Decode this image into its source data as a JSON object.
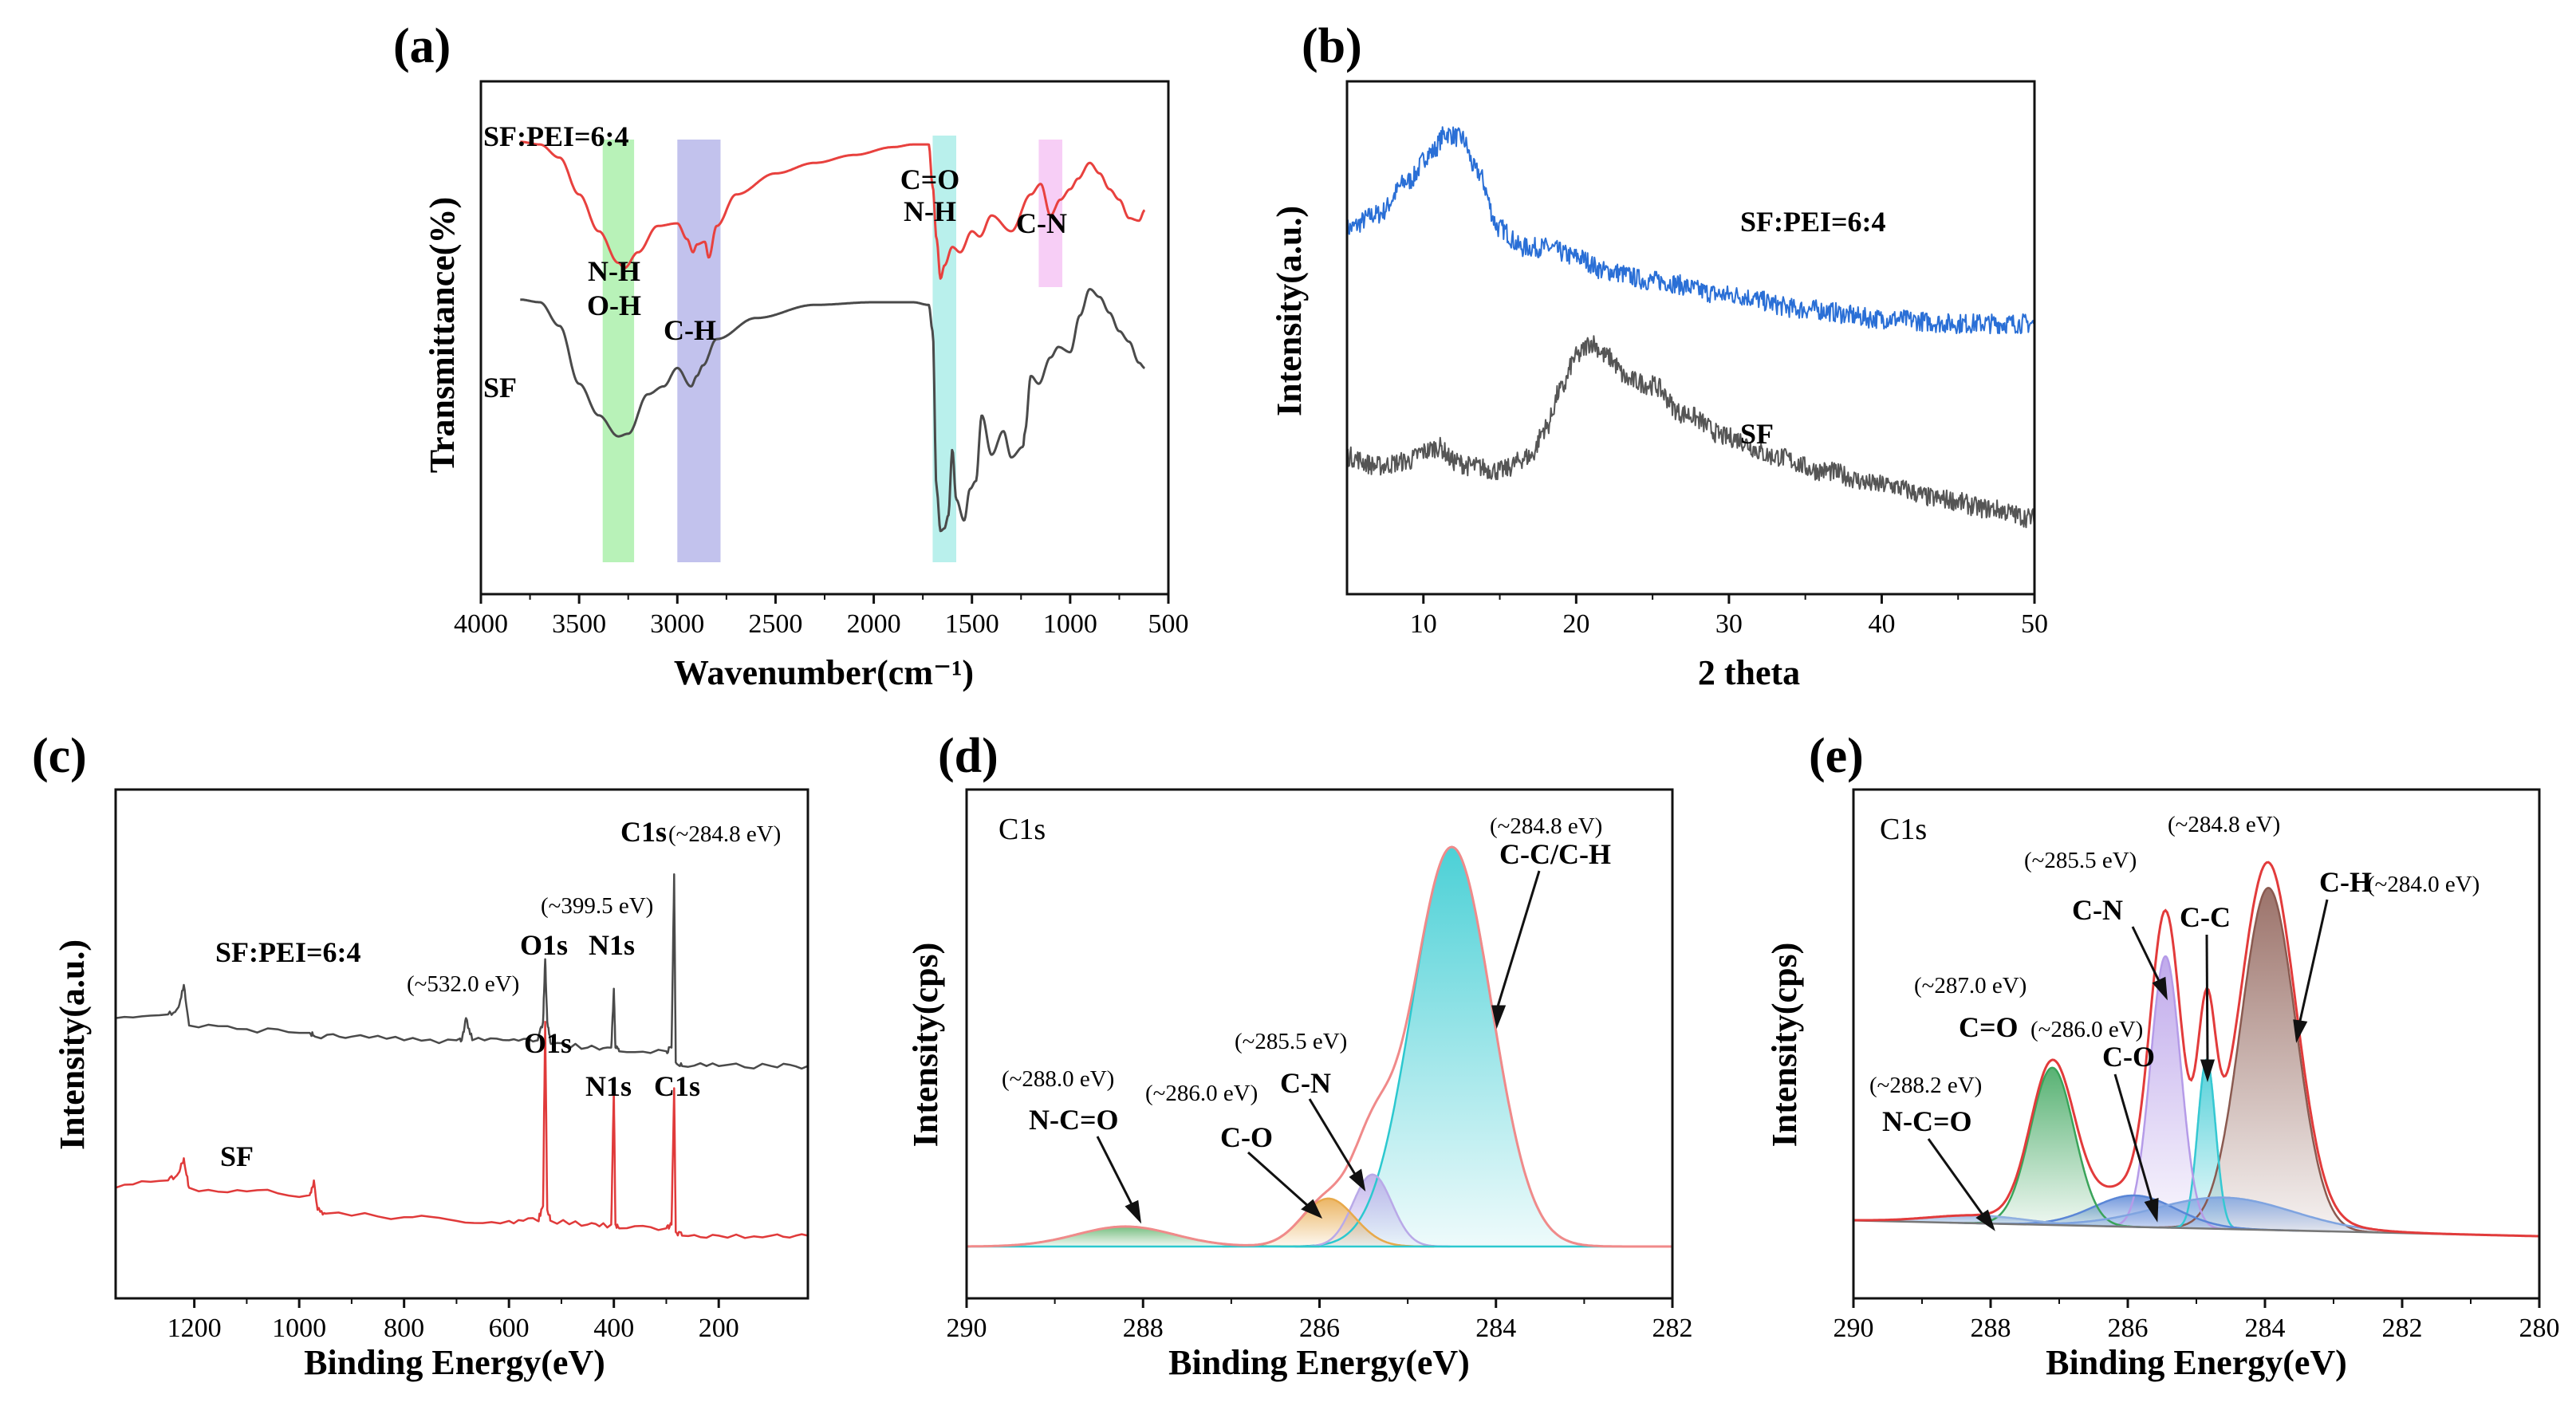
{
  "chart_data": [
    {
      "id": "a",
      "type": "line",
      "panel_label": "(a)",
      "xlabel": "Wavenumber(cm⁻¹)",
      "ylabel": "Transmittance(%)",
      "xlim": [
        4000,
        500
      ],
      "xticks": [
        4000,
        3500,
        3000,
        2500,
        2000,
        1500,
        1000,
        500
      ],
      "tick_labels": [
        "4000",
        "3500",
        "3000",
        "2500",
        "2000",
        "1500",
        "1000",
        "500"
      ],
      "bands": [
        {
          "label": "N-H\nO-H",
          "lines": [
            "N-H",
            "O-H"
          ],
          "x0": 3380,
          "x1": 3220,
          "color": "#7de87d"
        },
        {
          "label": "C-H",
          "lines": [
            "C-H"
          ],
          "x0": 3000,
          "x1": 2780,
          "color": "#8f8fdf"
        },
        {
          "label": "C=O\nN-H",
          "lines": [
            "C=O",
            "N-H"
          ],
          "x0": 1700,
          "x1": 1580,
          "color": "#7fe3dd"
        },
        {
          "label": "C-N",
          "lines": [
            "C-N"
          ],
          "x0": 1160,
          "x1": 1040,
          "color": "#f0a6ef"
        }
      ],
      "series": [
        {
          "name": "SF:PEI=6:4",
          "color": "#e8413e",
          "x": [
            3800,
            3700,
            3600,
            3500,
            3400,
            3300,
            3270,
            3200,
            3100,
            3000,
            2950,
            2920,
            2900,
            2860,
            2840,
            2800,
            2700,
            2500,
            2300,
            2100,
            1900,
            1800,
            1720,
            1700,
            1680,
            1660,
            1640,
            1600,
            1560,
            1500,
            1460,
            1400,
            1300,
            1200,
            1150,
            1100,
            1050,
            1000,
            960,
            900,
            850,
            800,
            750,
            700,
            650,
            620
          ],
          "y": [
            92,
            91,
            86,
            72,
            58,
            46,
            44,
            50,
            60,
            61,
            55,
            50,
            53,
            54,
            48,
            60,
            72,
            80,
            84,
            87,
            90,
            91,
            91,
            75,
            55,
            40,
            45,
            52,
            50,
            58,
            56,
            64,
            58,
            72,
            76,
            64,
            70,
            74,
            78,
            84,
            80,
            74,
            70,
            63,
            62,
            66
          ]
        },
        {
          "name": "SF",
          "color": "#4a4a4a",
          "x": [
            3800,
            3700,
            3600,
            3500,
            3400,
            3300,
            3250,
            3150,
            3070,
            3000,
            2930,
            2900,
            2870,
            2800,
            2600,
            2300,
            2000,
            1800,
            1720,
            1700,
            1680,
            1660,
            1640,
            1620,
            1600,
            1580,
            1540,
            1510,
            1480,
            1450,
            1400,
            1340,
            1300,
            1240,
            1230,
            1200,
            1160,
            1100,
            1060,
            1000,
            950,
            900,
            850,
            800,
            750,
            700,
            650,
            620
          ],
          "y": [
            32,
            31,
            22,
            0,
            -12,
            -20,
            -19,
            -4,
            -1,
            6,
            -1,
            3,
            7,
            17,
            25,
            30,
            31,
            31,
            30,
            20,
            -40,
            -56,
            -55,
            -50,
            -25,
            -44,
            -52,
            -40,
            -37,
            -12,
            -27,
            -18,
            -28,
            -24,
            -18,
            3,
            0,
            10,
            14,
            12,
            26,
            36,
            33,
            27,
            20,
            16,
            8,
            6
          ]
        }
      ],
      "series_labels": [
        "SF:PEI=6:4",
        "SF"
      ]
    },
    {
      "id": "b",
      "type": "line",
      "panel_label": "(b)",
      "xlabel": "2 theta",
      "ylabel": "Intensity(a.u.)",
      "xlim": [
        5,
        50
      ],
      "xticks": [
        10,
        20,
        30,
        40,
        50
      ],
      "tick_labels": [
        "10",
        "20",
        "30",
        "40",
        "50"
      ],
      "series": [
        {
          "name": "SF:PEI=6:4",
          "color": "#2a6fd6",
          "x": [
            5,
            7,
            9,
            10.5,
            11.5,
            12.5,
            13.5,
            15,
            16.5,
            18,
            20,
            22,
            25,
            30,
            35,
            40,
            45,
            50
          ],
          "y": [
            77,
            80,
            87,
            93,
            97,
            96,
            89,
            77,
            73,
            73,
            71,
            68,
            66,
            63,
            60,
            58,
            57,
            57
          ]
        },
        {
          "name": "SF",
          "color": "#555555",
          "x": [
            5,
            7,
            9,
            10,
            11,
            12,
            13,
            15,
            17,
            18,
            19,
            20,
            21,
            22,
            23.5,
            25,
            27,
            30,
            33,
            36,
            40,
            44,
            47,
            50
          ],
          "y": [
            29,
            27,
            28,
            30,
            31,
            28,
            27,
            26,
            29,
            35,
            43,
            50,
            53,
            50,
            45,
            44,
            38,
            33,
            29,
            26,
            23,
            20,
            18,
            16
          ]
        }
      ],
      "series_labels": [
        "SF:PEI=6:4",
        "SF"
      ]
    },
    {
      "id": "c",
      "type": "line",
      "panel_label": "(c)",
      "xlabel": "Binding Energy(eV)",
      "ylabel": "Intensity(a.u.)",
      "xlim": [
        1350,
        30
      ],
      "xticks": [
        1200,
        1000,
        800,
        600,
        400,
        200
      ],
      "tick_labels": [
        "1200",
        "1000",
        "800",
        "600",
        "400",
        "200"
      ],
      "series": [
        {
          "name": "SF:PEI=6:4",
          "color": "#4a4a4a",
          "x": [
            1350,
            1250,
            1230,
            1220,
            1210,
            1100,
            980,
            970,
            900,
            800,
            700,
            690,
            682,
            670,
            600,
            545,
            535,
            531,
            527,
            520,
            450,
            405,
            400,
            397,
            390,
            300,
            290,
            285,
            282,
            270,
            200,
            100,
            30
          ],
          "y": [
            56,
            57,
            59,
            65,
            54,
            53,
            52,
            51,
            51,
            50,
            50,
            50,
            56,
            50,
            50,
            50,
            55,
            72,
            55,
            49,
            48,
            48,
            64,
            48,
            47,
            47,
            48,
            95,
            44,
            43,
            43,
            43,
            43
          ]
        },
        {
          "name": "SF",
          "color": "#e03a3a",
          "x": [
            1350,
            1250,
            1230,
            1220,
            1210,
            1100,
            980,
            972,
            965,
            950,
            800,
            700,
            600,
            545,
            535,
            531,
            527,
            520,
            450,
            405,
            400,
            397,
            390,
            300,
            290,
            285,
            282,
            270,
            200,
            100,
            30
          ],
          "y": [
            10,
            12,
            14,
            18,
            10,
            9,
            8,
            12,
            4,
            3,
            2,
            1,
            1,
            1,
            5,
            55,
            4,
            1,
            0,
            0,
            37,
            0,
            -1,
            -1,
            0,
            37,
            -2,
            -3,
            -3,
            -3,
            -3
          ]
        }
      ],
      "series_labels": [
        "SF:PEI=6:4",
        "SF"
      ],
      "annotations": [
        {
          "text": "C1s",
          "bold": true
        },
        {
          "text": "(~284.8 eV)"
        },
        {
          "text": "(~399.5 eV)"
        },
        {
          "text": "O1s",
          "bold": true
        },
        {
          "text": "N1s",
          "bold": true
        },
        {
          "text": "(~532.0 eV)"
        },
        {
          "text": "O1s",
          "bold": true
        },
        {
          "text": "N1s",
          "bold": true
        },
        {
          "text": "C1s",
          "bold": true
        }
      ]
    },
    {
      "id": "d",
      "type": "area",
      "panel_label": "(d)",
      "xlabel": "Binding Energy(eV)",
      "ylabel": "Intensity(cps)",
      "inset_label": "C1s",
      "xlim": [
        290,
        282
      ],
      "ylim": [
        0,
        1.05
      ],
      "xticks": [
        290,
        288,
        286,
        284,
        282
      ],
      "tick_labels": [
        "290",
        "288",
        "286",
        "284",
        "282"
      ],
      "envelope_color": "#f08a8a",
      "peaks": [
        {
          "name": "C-C/C-H",
          "center": 284.5,
          "height": 1.0,
          "width": 0.45,
          "color": "#2cc8cf",
          "annotation": "(~284.8 eV)"
        },
        {
          "name": "C-N",
          "center": 285.4,
          "height": 0.18,
          "width": 0.22,
          "color": "#b9a9e8",
          "annotation": "(~285.5 eV)"
        },
        {
          "name": "C-O",
          "center": 285.9,
          "height": 0.12,
          "width": 0.3,
          "color": "#e8a94a",
          "annotation": "(~286.0 eV)"
        },
        {
          "name": "N-C=O",
          "center": 288.2,
          "height": 0.05,
          "width": 0.55,
          "color": "#5fb36a",
          "annotation": "(~288.0 eV)"
        }
      ]
    },
    {
      "id": "e",
      "type": "area",
      "panel_label": "(e)",
      "xlabel": "Binding Energy(eV)",
      "ylabel": "Intensity(cps)",
      "inset_label": "C1s",
      "xlim": [
        290,
        280
      ],
      "ylim": [
        0,
        1.05
      ],
      "xticks": [
        290,
        288,
        286,
        284,
        282,
        280
      ],
      "tick_labels": [
        "290",
        "288",
        "286",
        "284",
        "282",
        "280"
      ],
      "envelope_color": "#e23b3b",
      "baseline": [
        0.05,
        0.01
      ],
      "peaks": [
        {
          "name": "C-H",
          "center": 283.95,
          "height": 0.87,
          "width": 0.4,
          "color": "#8a5a50",
          "annotation": "(~284.0 eV)"
        },
        {
          "name": "C-C",
          "center": 284.85,
          "height": 0.43,
          "width": 0.13,
          "color": "#35c8d2",
          "annotation": "(~284.8 eV)"
        },
        {
          "name": "C-N",
          "center": 285.45,
          "height": 0.69,
          "width": 0.22,
          "color": "#b59be8",
          "annotation": "(~285.5 eV)"
        },
        {
          "name": "C-O",
          "center": 285.9,
          "height": 0.08,
          "width": 0.6,
          "color": "#5a86d6",
          "annotation": "(~286.0 eV)"
        },
        {
          "name": "C=O",
          "center": 287.1,
          "height": 0.4,
          "width": 0.32,
          "color": "#3aa45a",
          "annotation": "(~287.0 eV)"
        },
        {
          "name": "N-C=O",
          "center": 288.2,
          "height": 0.02,
          "width": 0.7,
          "color": "#8fb0e0",
          "annotation": "(~288.2 eV)"
        },
        {
          "name": "broad",
          "center": 284.6,
          "height": 0.08,
          "width": 1.0,
          "color": "#7fa4e0"
        }
      ]
    }
  ]
}
